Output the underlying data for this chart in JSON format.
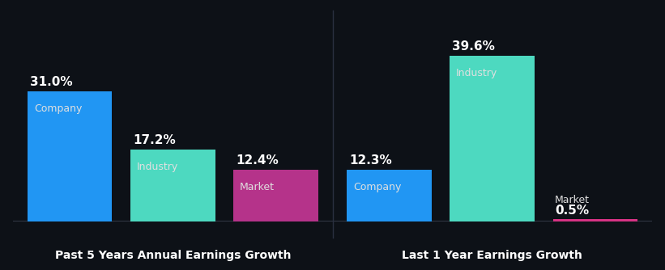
{
  "background_color": "#0d1117",
  "groups": [
    {
      "title": "Past 5 Years Annual Earnings Growth",
      "bars": [
        {
          "label": "Company",
          "value": 31.0,
          "color": "#2196f3"
        },
        {
          "label": "Industry",
          "value": 17.2,
          "color": "#4dd9c0"
        },
        {
          "label": "Market",
          "value": 12.4,
          "color": "#b5338a"
        }
      ]
    },
    {
      "title": "Last 1 Year Earnings Growth",
      "bars": [
        {
          "label": "Company",
          "value": 12.3,
          "color": "#2196f3"
        },
        {
          "label": "Industry",
          "value": 39.6,
          "color": "#4dd9c0"
        },
        {
          "label": "Market",
          "value": 0.5,
          "color": "#d63384"
        }
      ]
    }
  ],
  "value_fontsize": 11,
  "label_fontsize": 9,
  "title_fontsize": 10,
  "title_color": "#ffffff",
  "value_color": "#ffffff",
  "label_color": "#e0e0e0",
  "divider_color": "#2a3040",
  "baseline_color": "#3a4050"
}
